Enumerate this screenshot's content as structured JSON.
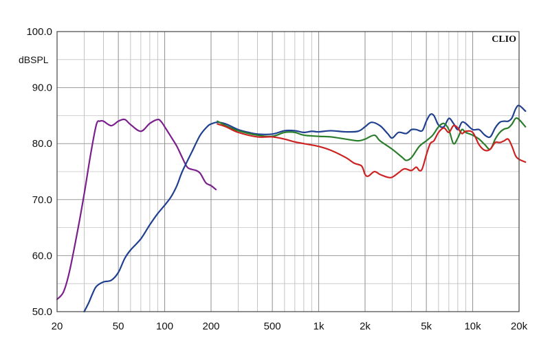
{
  "chart_data": {
    "type": "line",
    "brand": "CLIO",
    "ylabel": "dBSPL",
    "xlabel": "",
    "x_scale": "log",
    "xlim": [
      20,
      20000
    ],
    "ylim": [
      50,
      100
    ],
    "grid": true,
    "x_ticks": [
      {
        "value": 20,
        "label": "20"
      },
      {
        "value": 50,
        "label": "50"
      },
      {
        "value": 100,
        "label": "100"
      },
      {
        "value": 200,
        "label": "200"
      },
      {
        "value": 500,
        "label": "500"
      },
      {
        "value": 1000,
        "label": "1k"
      },
      {
        "value": 2000,
        "label": "2k"
      },
      {
        "value": 5000,
        "label": "5k"
      },
      {
        "value": 10000,
        "label": "10k"
      },
      {
        "value": 20000,
        "label": "20k"
      }
    ],
    "y_ticks": [
      {
        "value": 100,
        "label": "100.0"
      },
      {
        "value": 90,
        "label": "90.0"
      },
      {
        "value": 80,
        "label": "80.0"
      },
      {
        "value": 70,
        "label": "70.0"
      },
      {
        "value": 60,
        "label": "60.0"
      },
      {
        "value": 50,
        "label": "50.0"
      }
    ],
    "series": [
      {
        "color": "#7a1f8c",
        "points": [
          [
            20,
            52.2
          ],
          [
            22,
            53.5
          ],
          [
            24,
            57
          ],
          [
            27,
            64
          ],
          [
            30,
            71
          ],
          [
            33,
            78
          ],
          [
            36,
            83.4
          ],
          [
            38,
            84
          ],
          [
            40,
            84
          ],
          [
            45,
            83.2
          ],
          [
            50,
            84
          ],
          [
            55,
            84.3
          ],
          [
            60,
            83.4
          ],
          [
            70,
            82.2
          ],
          [
            80,
            83.6
          ],
          [
            90,
            84.3
          ],
          [
            95,
            83.9
          ],
          [
            100,
            83
          ],
          [
            110,
            81.2
          ],
          [
            120,
            79.5
          ],
          [
            130,
            77.5
          ],
          [
            140,
            75.8
          ],
          [
            150,
            75.4
          ],
          [
            160,
            75.2
          ],
          [
            170,
            74.7
          ],
          [
            185,
            73
          ],
          [
            200,
            72.5
          ],
          [
            215,
            71.8
          ]
        ]
      },
      {
        "color": "#1f3f8f",
        "points": [
          [
            30,
            50
          ],
          [
            32,
            51.5
          ],
          [
            34,
            53.2
          ],
          [
            36,
            54.5
          ],
          [
            40,
            55.3
          ],
          [
            45,
            55.6
          ],
          [
            50,
            57
          ],
          [
            55,
            59.5
          ],
          [
            60,
            61
          ],
          [
            70,
            63
          ],
          [
            80,
            65.5
          ],
          [
            90,
            67.5
          ],
          [
            100,
            69
          ],
          [
            110,
            70.5
          ],
          [
            120,
            72.5
          ],
          [
            130,
            75
          ],
          [
            150,
            78.5
          ],
          [
            170,
            81.5
          ],
          [
            190,
            83.1
          ],
          [
            200,
            83.5
          ],
          [
            220,
            83.8
          ],
          [
            250,
            83.5
          ],
          [
            300,
            82.5
          ],
          [
            350,
            82
          ],
          [
            400,
            81.7
          ],
          [
            500,
            81.7
          ],
          [
            600,
            82.3
          ],
          [
            700,
            82.3
          ],
          [
            800,
            82
          ],
          [
            900,
            82.2
          ],
          [
            1000,
            82.1
          ],
          [
            1200,
            82.3
          ],
          [
            1500,
            82.1
          ],
          [
            1800,
            82.2
          ],
          [
            2000,
            83
          ],
          [
            2200,
            83.8
          ],
          [
            2500,
            83.2
          ],
          [
            2800,
            81.8
          ],
          [
            3000,
            81
          ],
          [
            3300,
            82
          ],
          [
            3700,
            81.8
          ],
          [
            4000,
            82.5
          ],
          [
            4300,
            82.5
          ],
          [
            4700,
            82.3
          ],
          [
            5000,
            84
          ],
          [
            5300,
            85.2
          ],
          [
            5600,
            85
          ],
          [
            6000,
            83.3
          ],
          [
            6500,
            83
          ],
          [
            7000,
            84.5
          ],
          [
            7500,
            83.6
          ],
          [
            8000,
            82.5
          ],
          [
            8500,
            83.8
          ],
          [
            9000,
            83.6
          ],
          [
            10000,
            82.5
          ],
          [
            11000,
            82.5
          ],
          [
            12000,
            81.5
          ],
          [
            13000,
            81.2
          ],
          [
            14000,
            82.8
          ],
          [
            15000,
            83.8
          ],
          [
            16000,
            84
          ],
          [
            17000,
            84
          ],
          [
            18000,
            84.6
          ],
          [
            19000,
            86.2
          ],
          [
            20000,
            86.8
          ],
          [
            22000,
            85.8
          ]
        ]
      },
      {
        "color": "#2a7d2a",
        "points": [
          [
            220,
            84
          ],
          [
            250,
            83.2
          ],
          [
            300,
            82.3
          ],
          [
            400,
            81.5
          ],
          [
            500,
            81.3
          ],
          [
            600,
            82
          ],
          [
            700,
            82
          ],
          [
            800,
            81.5
          ],
          [
            1000,
            81.3
          ],
          [
            1200,
            81.2
          ],
          [
            1500,
            80.8
          ],
          [
            1800,
            80.5
          ],
          [
            2000,
            80.8
          ],
          [
            2300,
            81.5
          ],
          [
            2500,
            80.5
          ],
          [
            3000,
            79
          ],
          [
            3500,
            77.5
          ],
          [
            3700,
            77
          ],
          [
            4000,
            77.5
          ],
          [
            4500,
            79.5
          ],
          [
            5000,
            80.5
          ],
          [
            5500,
            81.5
          ],
          [
            6000,
            83
          ],
          [
            6500,
            83.6
          ],
          [
            7000,
            82.5
          ],
          [
            7500,
            80
          ],
          [
            8000,
            81
          ],
          [
            8500,
            82.5
          ],
          [
            9000,
            82
          ],
          [
            10000,
            81.5
          ],
          [
            11000,
            80.8
          ],
          [
            12000,
            79.8
          ],
          [
            13000,
            79
          ],
          [
            14000,
            80.8
          ],
          [
            15000,
            82
          ],
          [
            16000,
            82.6
          ],
          [
            17000,
            82.8
          ],
          [
            18000,
            83.5
          ],
          [
            19000,
            84.5
          ],
          [
            20000,
            84.3
          ],
          [
            22000,
            83
          ]
        ]
      },
      {
        "color": "#cc2222",
        "points": [
          [
            220,
            83.5
          ],
          [
            250,
            83
          ],
          [
            300,
            82
          ],
          [
            400,
            81.2
          ],
          [
            500,
            81.2
          ],
          [
            600,
            80.8
          ],
          [
            700,
            80.3
          ],
          [
            800,
            80
          ],
          [
            1000,
            79.5
          ],
          [
            1200,
            78.8
          ],
          [
            1500,
            77.5
          ],
          [
            1700,
            76.5
          ],
          [
            1900,
            76
          ],
          [
            2000,
            74.5
          ],
          [
            2100,
            74.2
          ],
          [
            2300,
            75
          ],
          [
            2500,
            74.5
          ],
          [
            2800,
            74
          ],
          [
            3000,
            74
          ],
          [
            3300,
            74.8
          ],
          [
            3600,
            75.5
          ],
          [
            4000,
            75.2
          ],
          [
            4300,
            75.8
          ],
          [
            4500,
            75.2
          ],
          [
            4700,
            75.5
          ],
          [
            5000,
            78
          ],
          [
            5300,
            80
          ],
          [
            5600,
            80.5
          ],
          [
            6000,
            82
          ],
          [
            6500,
            82.8
          ],
          [
            7000,
            82
          ],
          [
            7500,
            83.2
          ],
          [
            8000,
            82.8
          ],
          [
            8500,
            81.8
          ],
          [
            9000,
            82.2
          ],
          [
            10000,
            82
          ],
          [
            11000,
            79.8
          ],
          [
            12000,
            78.8
          ],
          [
            13000,
            79
          ],
          [
            14000,
            80.2
          ],
          [
            15000,
            80.2
          ],
          [
            16000,
            80.5
          ],
          [
            17000,
            80.8
          ],
          [
            18000,
            79.5
          ],
          [
            19000,
            77.8
          ],
          [
            20000,
            77.2
          ],
          [
            22000,
            76.7
          ]
        ]
      }
    ]
  }
}
